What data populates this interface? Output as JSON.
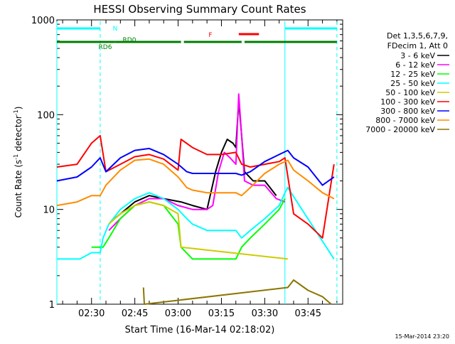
{
  "chart_data": {
    "type": "line",
    "title": "HESSI Observing Summary Count Rates",
    "xlabel": "Start Time (16-Mar-14 02:18:02)",
    "ylabel": "Count Rate (s⁻¹ detector⁻¹)",
    "ylabel_parts": [
      "Count Rate (s",
      "-1",
      " detector",
      "-1",
      ")"
    ],
    "y_scale": "log",
    "ylim": [
      1,
      1000
    ],
    "xlim": [
      "02:18",
      "03:57"
    ],
    "x_ticks": [
      "02:30",
      "02:45",
      "03:00",
      "03:15",
      "03:30",
      "03:45"
    ],
    "y_ticks": [
      "1",
      "10",
      "100",
      "1000"
    ],
    "footer_timestamp": "15-Mar-2014 23:20",
    "legend": {
      "header": [
        "Det 1,3,5,6,7,9,",
        "FDecim 1, Att 0"
      ],
      "placement": "top-right outside"
    },
    "flags": [
      {
        "label": "N",
        "color": "#00ffff",
        "intervals": [
          [
            "02:18",
            "02:33"
          ],
          [
            "03:37",
            "03:55"
          ]
        ]
      },
      {
        "label": "F",
        "color": "#ff0000",
        "intervals": [
          [
            "03:21",
            "03:28"
          ]
        ]
      },
      {
        "label": "RD0",
        "color": "#007f00",
        "intervals": [
          [
            "02:18",
            "02:38"
          ],
          [
            "02:38",
            "03:01"
          ],
          [
            "03:02",
            "03:22"
          ],
          [
            "03:23",
            "03:55"
          ]
        ]
      },
      {
        "label": "RD6",
        "color": "#007f00",
        "intervals": [
          [
            "02:18",
            "02:32"
          ]
        ]
      }
    ],
    "vlines": [
      {
        "time": "02:18",
        "style": "solid",
        "color": "#00ffff"
      },
      {
        "time": "02:33",
        "style": "dashed",
        "color": "#00ffff"
      },
      {
        "time": "03:37",
        "style": "solid",
        "color": "#00ffff"
      },
      {
        "time": "03:55",
        "style": "dashed",
        "color": "#00ffff"
      }
    ],
    "series": [
      {
        "name": "3 - 6 keV",
        "color": "#000000",
        "points": [
          [
            "02:38",
            8
          ],
          [
            "02:45",
            12
          ],
          [
            "02:50",
            14
          ],
          [
            "02:55",
            13
          ],
          [
            "03:01",
            12
          ],
          [
            "03:05",
            11
          ],
          [
            "03:10",
            10
          ],
          [
            "03:13",
            25
          ],
          [
            "03:15",
            40
          ],
          [
            "03:17",
            55
          ],
          [
            "03:19",
            50
          ],
          [
            "03:20",
            45
          ],
          [
            "03:21",
            140
          ],
          [
            "03:22",
            60
          ],
          [
            "03:23",
            25
          ],
          [
            "03:26",
            20
          ],
          [
            "03:30",
            20
          ],
          [
            "03:34",
            14
          ]
        ]
      },
      {
        "name": "6 - 12 keV",
        "color": "#ff00ff",
        "points": [
          [
            "02:36",
            6
          ],
          [
            "02:40",
            8
          ],
          [
            "02:45",
            11
          ],
          [
            "02:50",
            13
          ],
          [
            "02:55",
            13
          ],
          [
            "03:00",
            11
          ],
          [
            "03:05",
            10
          ],
          [
            "03:10",
            10
          ],
          [
            "03:12",
            11
          ],
          [
            "03:14",
            25
          ],
          [
            "03:16",
            40
          ],
          [
            "03:18",
            35
          ],
          [
            "03:20",
            30
          ],
          [
            "03:21",
            165
          ],
          [
            "03:22",
            60
          ],
          [
            "03:23",
            20
          ],
          [
            "03:26",
            18
          ],
          [
            "03:30",
            18
          ],
          [
            "03:34",
            13
          ],
          [
            "03:37",
            12
          ]
        ]
      },
      {
        "name": "12 - 25 keV",
        "color": "#00ff00",
        "points": [
          [
            "02:30",
            4
          ],
          [
            "02:34",
            4
          ],
          [
            "02:36",
            5
          ],
          [
            "02:40",
            8
          ],
          [
            "02:45",
            11
          ],
          [
            "02:50",
            12
          ],
          [
            "02:55",
            11
          ],
          [
            "03:00",
            7
          ],
          [
            "03:01",
            4
          ],
          [
            "03:05",
            3
          ],
          [
            "03:10",
            3
          ],
          [
            "03:15",
            3
          ],
          [
            "03:20",
            3
          ],
          [
            "03:22",
            4
          ],
          [
            "03:25",
            5
          ],
          [
            "03:30",
            7
          ],
          [
            "03:35",
            10
          ],
          [
            "03:37",
            13
          ]
        ]
      },
      {
        "name": "25 - 50 keV",
        "color": "#00ffff",
        "points": [
          [
            "02:18",
            3
          ],
          [
            "02:22",
            3
          ],
          [
            "02:26",
            3
          ],
          [
            "02:30",
            3.5
          ],
          [
            "02:33",
            3.5
          ],
          [
            "02:34",
            5
          ],
          [
            "02:36",
            7
          ],
          [
            "02:40",
            10
          ],
          [
            "02:45",
            13
          ],
          [
            "02:50",
            15
          ],
          [
            "02:55",
            13
          ],
          [
            "03:00",
            10
          ],
          [
            "03:03",
            8
          ],
          [
            "03:05",
            7
          ],
          [
            "03:10",
            6
          ],
          [
            "03:15",
            6
          ],
          [
            "03:20",
            6
          ],
          [
            "03:22",
            5
          ],
          [
            "03:25",
            6
          ],
          [
            "03:30",
            8
          ],
          [
            "03:35",
            11
          ],
          [
            "03:37",
            15
          ],
          [
            "03:38",
            17
          ],
          [
            "03:54",
            3
          ]
        ]
      },
      {
        "name": "50 - 100 keV",
        "color": "#cccc00",
        "points": [
          [
            "02:36",
            7
          ],
          [
            "02:40",
            9
          ],
          [
            "02:45",
            11
          ],
          [
            "02:50",
            12
          ],
          [
            "02:55",
            11
          ],
          [
            "03:00",
            9
          ],
          [
            "03:01",
            4
          ],
          [
            "03:38",
            3
          ]
        ]
      },
      {
        "name": "100 - 300 keV",
        "color": "#ff0000",
        "points": [
          [
            "02:18",
            28
          ],
          [
            "02:25",
            30
          ],
          [
            "02:30",
            50
          ],
          [
            "02:33",
            60
          ],
          [
            "02:35",
            25
          ],
          [
            "02:40",
            30
          ],
          [
            "02:45",
            36
          ],
          [
            "02:50",
            38
          ],
          [
            "02:55",
            34
          ],
          [
            "03:00",
            26
          ],
          [
            "03:01",
            55
          ],
          [
            "03:05",
            45
          ],
          [
            "03:10",
            38
          ],
          [
            "03:15",
            38
          ],
          [
            "03:20",
            40
          ],
          [
            "03:22",
            30
          ],
          [
            "03:25",
            28
          ],
          [
            "03:30",
            30
          ],
          [
            "03:35",
            32
          ],
          [
            "03:37",
            35
          ],
          [
            "03:40",
            9
          ],
          [
            "03:45",
            7
          ],
          [
            "03:50",
            5
          ],
          [
            "03:54",
            30
          ]
        ]
      },
      {
        "name": "300 - 800 keV",
        "color": "#0000ff",
        "points": [
          [
            "02:18",
            20
          ],
          [
            "02:25",
            22
          ],
          [
            "02:30",
            28
          ],
          [
            "02:33",
            35
          ],
          [
            "02:35",
            25
          ],
          [
            "02:40",
            35
          ],
          [
            "02:45",
            42
          ],
          [
            "02:50",
            44
          ],
          [
            "02:55",
            38
          ],
          [
            "03:00",
            30
          ],
          [
            "03:03",
            25
          ],
          [
            "03:05",
            24
          ],
          [
            "03:10",
            24
          ],
          [
            "03:15",
            24
          ],
          [
            "03:20",
            24
          ],
          [
            "03:22",
            23
          ],
          [
            "03:25",
            25
          ],
          [
            "03:30",
            32
          ],
          [
            "03:35",
            38
          ],
          [
            "03:38",
            42
          ],
          [
            "03:40",
            35
          ],
          [
            "03:45",
            28
          ],
          [
            "03:50",
            18
          ],
          [
            "03:54",
            22
          ]
        ]
      },
      {
        "name": "800 - 7000 keV",
        "color": "#ff8c00",
        "points": [
          [
            "02:18",
            11
          ],
          [
            "02:25",
            12
          ],
          [
            "02:30",
            14
          ],
          [
            "02:33",
            14
          ],
          [
            "02:35",
            18
          ],
          [
            "02:40",
            26
          ],
          [
            "02:45",
            33
          ],
          [
            "02:50",
            34
          ],
          [
            "02:55",
            30
          ],
          [
            "03:00",
            22
          ],
          [
            "03:03",
            17
          ],
          [
            "03:05",
            16
          ],
          [
            "03:10",
            15
          ],
          [
            "03:15",
            15
          ],
          [
            "03:20",
            15
          ],
          [
            "03:22",
            14
          ],
          [
            "03:25",
            17
          ],
          [
            "03:30",
            24
          ],
          [
            "03:35",
            30
          ],
          [
            "03:38",
            33
          ],
          [
            "03:40",
            26
          ],
          [
            "03:45",
            20
          ],
          [
            "03:50",
            15
          ],
          [
            "03:54",
            13
          ]
        ]
      },
      {
        "name": "7000 - 20000 keV",
        "color": "#8b7500",
        "points": [
          [
            "02:48",
            1.5
          ],
          [
            "02:48.3",
            1
          ],
          [
            "03:38",
            1.5
          ],
          [
            "03:40",
            1.8
          ],
          [
            "03:45",
            1.4
          ],
          [
            "03:50",
            1.2
          ],
          [
            "03:53",
            1
          ]
        ]
      }
    ]
  }
}
